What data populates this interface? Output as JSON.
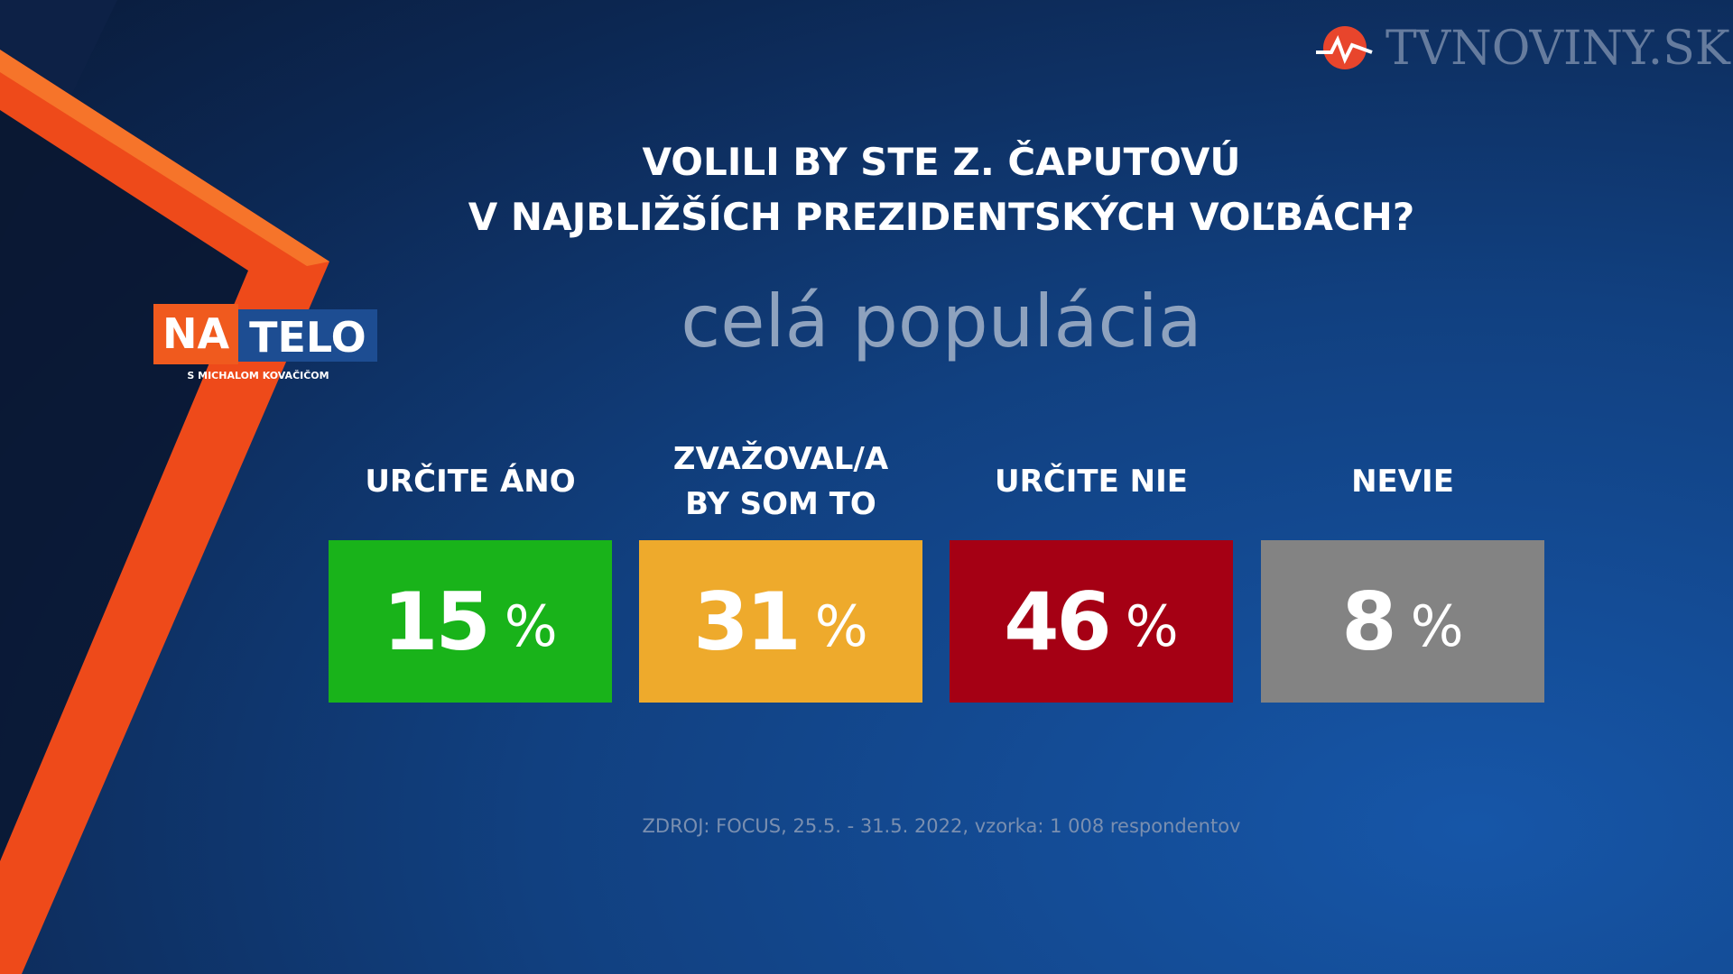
{
  "brand": {
    "site": "TVNOVINY.SK",
    "show_na": "NA",
    "show_telo": "TELO",
    "show_host": "S MICHALOM KOVAČIČOM"
  },
  "header": {
    "title_lines": [
      "VOLILI BY STE Z. ČAPUTOVÚ",
      "V NAJBLIŽŠÍCH PREZIDENTSKÝCH VOĽBÁCH?"
    ],
    "subtitle": "celá populácia"
  },
  "items": [
    {
      "label_lines": [
        "URČITE ÁNO"
      ],
      "value": 15,
      "unit": "%",
      "color": "#19b31a"
    },
    {
      "label_lines": [
        "ZVAŽOVAL/A",
        "BY SOM TO"
      ],
      "value": 31,
      "unit": "%",
      "color": "#eeaa2c"
    },
    {
      "label_lines": [
        "URČITE NIE"
      ],
      "value": 46,
      "unit": "%",
      "color": "#a50014"
    },
    {
      "label_lines": [
        "NEVIE"
      ],
      "value": 8,
      "unit": "%",
      "color": "#838383"
    }
  ],
  "footer": {
    "source": "ZDROJ: FOCUS, 25.5. - 31.5. 2022, vzorka: 1 008 respondentov"
  }
}
